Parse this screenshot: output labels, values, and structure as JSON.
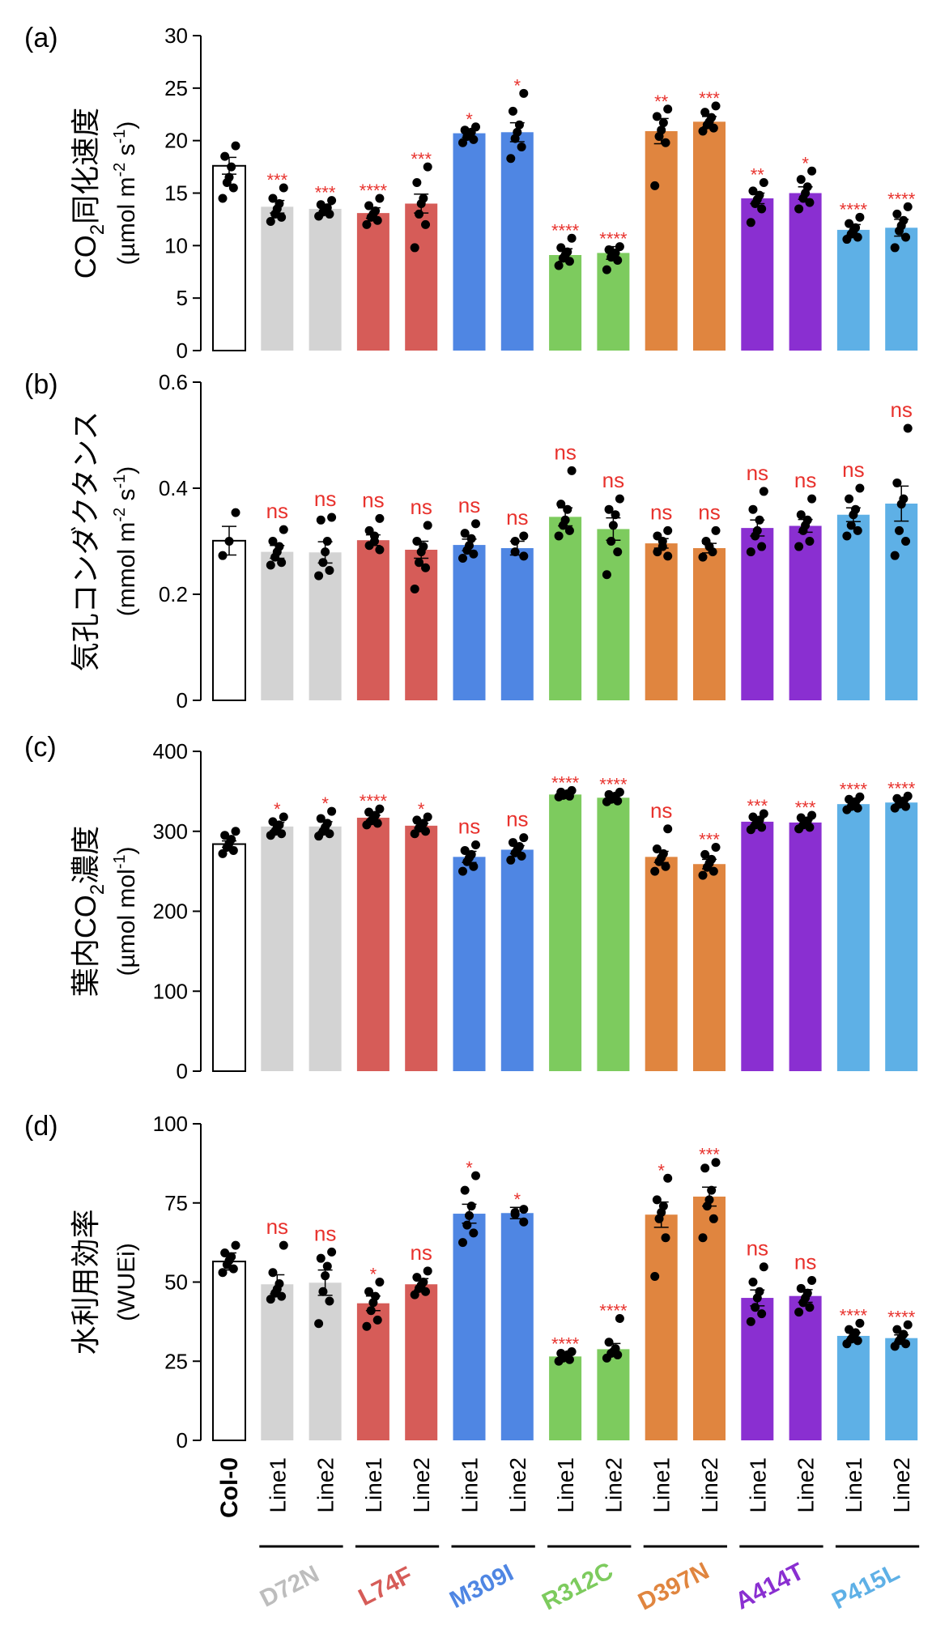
{
  "x_labels": [
    "Col-0",
    "Line1",
    "Line2",
    "Line1",
    "Line2",
    "Line1",
    "Line2",
    "Line1",
    "Line2",
    "Line1",
    "Line2",
    "Line1",
    "Line2",
    "Line1",
    "Line2"
  ],
  "groups": [
    {
      "name": "D72N",
      "color": "#d3d3d3",
      "label_color": "#bdbdbd"
    },
    {
      "name": "L74F",
      "color": "#d65c58",
      "label_color": "#d65c58"
    },
    {
      "name": "M309I",
      "color": "#4f86e3",
      "label_color": "#4f86e3"
    },
    {
      "name": "R312C",
      "color": "#7dcb5e",
      "label_color": "#7dcb5e"
    },
    {
      "name": "D397N",
      "color": "#e0853f",
      "label_color": "#e0853f"
    },
    {
      "name": "A414T",
      "color": "#8a2fd1",
      "label_color": "#8a2fd1"
    },
    {
      "name": "P415L",
      "color": "#5eb0e6",
      "label_color": "#5eb0e6"
    }
  ],
  "chart_data": [
    {
      "type": "bar",
      "panel_label": "(a)",
      "ylabel_main": "CO",
      "ylabel_sub": "2",
      "ylabel_tail": "同化速度",
      "yunit_pre": "(µmol m",
      "yunit_exp1": "-2",
      "yunit_mid": " s",
      "yunit_exp2": "-1",
      "yunit_post": ")",
      "ylim": [
        0,
        30
      ],
      "ticks": [
        "0",
        "5",
        "10",
        "15",
        "20",
        "25",
        "30"
      ],
      "values": [
        17.6,
        13.7,
        13.5,
        13.1,
        14.0,
        20.7,
        20.8,
        9.1,
        9.3,
        20.9,
        21.8,
        14.5,
        15.0,
        11.5,
        11.7
      ],
      "errors": [
        0.8,
        0.6,
        0.4,
        0.5,
        0.9,
        0.4,
        0.9,
        0.6,
        0.6,
        1.2,
        0.5,
        0.5,
        0.6,
        0.5,
        0.8
      ],
      "significance": [
        "",
        "***",
        "***",
        "****",
        "***",
        "*",
        "*",
        "****",
        "****",
        "**",
        "***",
        "**",
        "*",
        "****",
        "****"
      ],
      "points": [
        [
          19.5,
          18.5,
          17.5,
          16.5,
          16.0,
          15.5,
          14.5
        ],
        [
          15.5,
          14.5,
          14.0,
          13.5,
          13.0,
          12.7,
          12.3
        ],
        [
          14.3,
          13.9,
          13.6,
          13.4,
          13.2,
          13.0,
          12.8
        ],
        [
          14.5,
          13.8,
          13.3,
          13.0,
          12.7,
          12.4,
          12.0
        ],
        [
          17.5,
          16.0,
          14.5,
          14.0,
          13.0,
          12.0,
          9.8
        ],
        [
          21.3,
          21.0,
          20.8,
          20.6,
          20.4,
          20.1,
          19.8
        ],
        [
          24.5,
          22.8,
          21.5,
          20.8,
          20.2,
          19.4,
          18.3
        ],
        [
          10.7,
          9.8,
          9.4,
          9.1,
          8.8,
          8.5,
          8.1
        ],
        [
          9.9,
          9.6,
          9.3,
          9.1,
          8.9,
          8.6,
          7.7
        ],
        [
          23.0,
          22.3,
          21.7,
          21.0,
          20.4,
          19.8,
          15.7
        ],
        [
          23.3,
          22.7,
          22.2,
          21.8,
          21.5,
          21.2,
          20.9
        ],
        [
          16.0,
          15.2,
          14.8,
          14.4,
          14.0,
          13.5,
          12.2
        ],
        [
          17.1,
          16.3,
          15.6,
          15.0,
          14.5,
          14.1,
          13.5
        ],
        [
          12.7,
          12.1,
          11.7,
          11.4,
          11.1,
          10.8,
          10.6
        ],
        [
          13.7,
          13.0,
          12.4,
          11.9,
          11.4,
          10.8,
          9.8
        ]
      ]
    },
    {
      "type": "bar",
      "panel_label": "(b)",
      "ylabel_main": "気孔コンダクタンス",
      "ylabel_sub": "",
      "ylabel_tail": "",
      "yunit_pre": "(mmol m",
      "yunit_exp1": "-2",
      "yunit_mid": " s",
      "yunit_exp2": "-1",
      "yunit_post": ")",
      "ylim": [
        0,
        0.6
      ],
      "ticks": [
        "0",
        "0.2",
        "0.4",
        "0.6"
      ],
      "values": [
        0.301,
        0.28,
        0.279,
        0.302,
        0.284,
        0.293,
        0.287,
        0.346,
        0.323,
        0.296,
        0.287,
        0.325,
        0.329,
        0.35,
        0.371
      ],
      "errors": [
        0.027,
        0.012,
        0.02,
        0.01,
        0.016,
        0.011,
        0.013,
        0.017,
        0.021,
        0.009,
        0.009,
        0.015,
        0.012,
        0.013,
        0.033
      ],
      "significance": [
        "",
        "ns",
        "ns",
        "ns",
        "ns",
        "ns",
        "ns",
        "ns",
        "ns",
        "ns",
        "ns",
        "ns",
        "ns",
        "ns",
        "ns"
      ],
      "points": [
        [
          0.354,
          0.3,
          0.273
        ],
        [
          0.322,
          0.3,
          0.29,
          0.28,
          0.27,
          0.26,
          0.255
        ],
        [
          0.345,
          0.34,
          0.3,
          0.28,
          0.26,
          0.245,
          0.235
        ],
        [
          0.343,
          0.32,
          0.31,
          0.3,
          0.292,
          0.284
        ],
        [
          0.33,
          0.3,
          0.29,
          0.28,
          0.26,
          0.25,
          0.21
        ],
        [
          0.333,
          0.315,
          0.305,
          0.292,
          0.283,
          0.276,
          0.268
        ],
        [
          0.31,
          0.3,
          0.28,
          0.272
        ],
        [
          0.433,
          0.37,
          0.36,
          0.34,
          0.33,
          0.32,
          0.31
        ],
        [
          0.38,
          0.36,
          0.35,
          0.33,
          0.3,
          0.28,
          0.237
        ],
        [
          0.32,
          0.31,
          0.3,
          0.29,
          0.28,
          0.272
        ],
        [
          0.32,
          0.3,
          0.29,
          0.28,
          0.27
        ],
        [
          0.394,
          0.36,
          0.34,
          0.32,
          0.31,
          0.29,
          0.28
        ],
        [
          0.38,
          0.35,
          0.34,
          0.33,
          0.32,
          0.3,
          0.29
        ],
        [
          0.4,
          0.38,
          0.36,
          0.35,
          0.33,
          0.32,
          0.31
        ],
        [
          0.513,
          0.41,
          0.38,
          0.37,
          0.32,
          0.3,
          0.273
        ]
      ]
    },
    {
      "type": "bar",
      "panel_label": "(c)",
      "ylabel_main": "葉内CO",
      "ylabel_sub": "2",
      "ylabel_tail": "濃度",
      "yunit_pre": "(µmol mol",
      "yunit_exp1": "-1",
      "yunit_mid": "",
      "yunit_exp2": "",
      "yunit_post": ")",
      "ylim": [
        0,
        400
      ],
      "ticks": [
        "0",
        "100",
        "200",
        "300",
        "400"
      ],
      "values": [
        284,
        306,
        306,
        317,
        307,
        268,
        277,
        346,
        342,
        268,
        259,
        312,
        311,
        334,
        336
      ],
      "errors": [
        4,
        5,
        6,
        3,
        3,
        7,
        5,
        2,
        2,
        7,
        6,
        4,
        3,
        3,
        2
      ],
      "significance": [
        "",
        "*",
        "*",
        "****",
        "*",
        "ns",
        "ns",
        "****",
        "****",
        "ns",
        "***",
        "***",
        "***",
        "****",
        "****"
      ],
      "points": [
        [
          300,
          295,
          290,
          285,
          280,
          276,
          272
        ],
        [
          318,
          312,
          308,
          305,
          300,
          297,
          295
        ],
        [
          325,
          316,
          310,
          305,
          300,
          297,
          294
        ],
        [
          328,
          324,
          320,
          316,
          313,
          310,
          308
        ],
        [
          318,
          314,
          310,
          307,
          304,
          300,
          297
        ],
        [
          283,
          276,
          271,
          267,
          262,
          256,
          250
        ],
        [
          292,
          286,
          281,
          277,
          273,
          269,
          264
        ],
        [
          351,
          349,
          347,
          346,
          345,
          344,
          343
        ],
        [
          349,
          346,
          344,
          342,
          340,
          338,
          337
        ],
        [
          303,
          278,
          272,
          267,
          262,
          256,
          250
        ],
        [
          280,
          271,
          265,
          260,
          255,
          250,
          245
        ],
        [
          322,
          318,
          314,
          311,
          308,
          305,
          302
        ],
        [
          320,
          317,
          313,
          310,
          308,
          305,
          303
        ],
        [
          343,
          340,
          337,
          334,
          331,
          329,
          327
        ],
        [
          344,
          341,
          338,
          336,
          334,
          331,
          329
        ]
      ]
    },
    {
      "type": "bar",
      "panel_label": "(d)",
      "ylabel_main": "水利用効率",
      "ylabel_sub": "",
      "ylabel_tail": "",
      "yunit_pre": "(WUEi)",
      "yunit_exp1": "",
      "yunit_mid": "",
      "yunit_exp2": "",
      "yunit_post": "",
      "ylim": [
        0,
        100
      ],
      "ticks": [
        "0",
        "25",
        "50",
        "75",
        "100"
      ],
      "values": [
        56.5,
        49.3,
        49.8,
        43.3,
        49.3,
        71.6,
        71.8,
        26.5,
        28.8,
        71.3,
        77.0,
        45.0,
        45.6,
        33.0,
        32.3
      ],
      "errors": [
        2.7,
        3.0,
        4.0,
        2.3,
        1.8,
        3.0,
        1.8,
        0.7,
        1.8,
        4.0,
        3.0,
        2.5,
        2.0,
        1.0,
        1.0
      ],
      "significance": [
        "",
        "ns",
        "ns",
        "*",
        "ns",
        "*",
        "*",
        "****",
        "****",
        "*",
        "***",
        "ns",
        "ns",
        "****",
        "****"
      ],
      "points": [
        [
          61.6,
          59.2,
          58.0,
          56.8,
          55.5,
          54.2,
          53.0
        ],
        [
          61.6,
          53.0,
          49.5,
          47.8,
          46.5,
          45.5,
          44.6
        ],
        [
          59.5,
          57.5,
          55.0,
          52.0,
          47.0,
          44.0,
          36.9
        ],
        [
          50.0,
          47.0,
          45.5,
          43.5,
          41.0,
          38.0,
          36.0
        ],
        [
          53.5,
          51.5,
          50.0,
          49.0,
          48.0,
          47.0,
          46.0
        ],
        [
          83.6,
          79.0,
          74.0,
          71.0,
          68.0,
          65.5,
          62.5
        ],
        [
          73.0,
          72.0,
          71.4,
          69.0
        ],
        [
          28.0,
          27.5,
          27.0,
          26.5,
          26.0,
          25.5,
          25.0
        ],
        [
          38.5,
          31.0,
          29.0,
          28.0,
          27.5,
          27.0,
          26.0
        ],
        [
          82.8,
          76.0,
          74.0,
          72.0,
          70.0,
          64.0,
          51.8
        ],
        [
          87.8,
          86.0,
          79.0,
          76.0,
          74.0,
          70.0,
          64.0
        ],
        [
          54.8,
          50.0,
          47.0,
          45.0,
          42.0,
          40.0,
          37.5
        ],
        [
          50.5,
          48.0,
          46.5,
          45.0,
          43.5,
          42.0,
          40.5
        ],
        [
          37.0,
          35.0,
          34.0,
          33.0,
          32.0,
          31.5,
          30.5
        ],
        [
          36.5,
          35.0,
          33.5,
          32.5,
          31.5,
          30.5,
          29.7
        ]
      ]
    }
  ]
}
